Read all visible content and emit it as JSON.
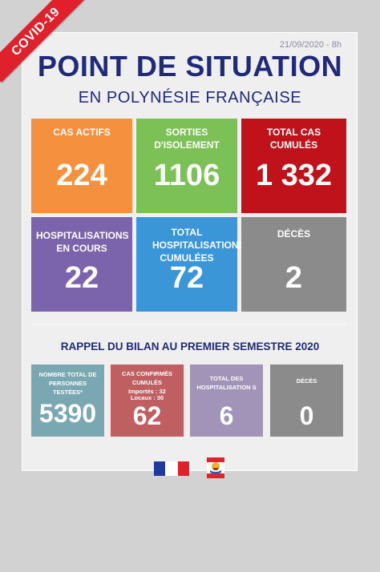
{
  "ribbon": "COVID-19",
  "date": "21/09/2020 - 8h",
  "title": "POINT DE SITUATION",
  "subtitle": "EN POLYNÉSIE FRANÇAISE",
  "tiles": [
    {
      "label": "CAS ACTIFS",
      "value": "224",
      "color": "#f5913e"
    },
    {
      "label": "SORTIES D'ISOLEMENT",
      "value": "1106",
      "color": "#7cc156"
    },
    {
      "label": "TOTAL CAS CUMULÉS",
      "value": "1 332",
      "color": "#c0121a"
    },
    {
      "label": "HOSPITALISATIONS EN COURS",
      "value": "22",
      "color": "#7b64ab"
    },
    {
      "label": "TOTAL HOSPITALISATIONS CUMULÉES",
      "value": "72",
      "color": "#3a96d6"
    },
    {
      "label": "DÉCÈS",
      "value": "2",
      "color": "#8b8b8b"
    }
  ],
  "recall_title": "RAPPEL DU BILAN AU PREMIER SEMESTRE 2020",
  "small_tiles": [
    {
      "label": "NOMBRE TOTAL DE PERSONNES TESTÉES*",
      "value": "5390",
      "color": "#79a7b2"
    },
    {
      "label": "CAS CONFIRMÉS CUMULÉS",
      "sub1": "Importés : 32",
      "sub2": "Locaux : 30",
      "value": "62",
      "color": "#bf5f62"
    },
    {
      "label": "TOTAL DES HOSPITALISATION S",
      "value": "6",
      "color": "#a293b9"
    },
    {
      "label": "DÉCÈS",
      "value": "0",
      "color": "#8b8b8b"
    }
  ],
  "logos": {
    "left": "french-republic-flag",
    "right": "french-polynesia-emblem"
  }
}
